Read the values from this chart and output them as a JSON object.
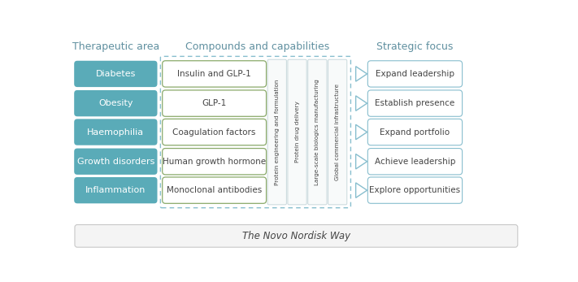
{
  "title_left": "Therapeutic area",
  "title_mid": "Compounds and capabilities",
  "title_right": "Strategic focus",
  "therapeutic_areas": [
    "Diabetes",
    "Obesity",
    "Haemophilia",
    "Growth disorders",
    "Inflammation"
  ],
  "compounds": [
    "Insulin and GLP-1",
    "GLP-1",
    "Coagulation factors",
    "Human growth hormone",
    "Monoclonal antibodies"
  ],
  "capabilities": [
    "Protein engineering and formulation",
    "Protein drug delivery",
    "Large-scale biologics manufacturing",
    "Global commercial infrastructure"
  ],
  "strategic_focus": [
    "Expand leadership",
    "Establish presence",
    "Expand portfolio",
    "Achieve leadership",
    "Explore opportunities"
  ],
  "footer": "The Novo Nordisk Way",
  "teal_color": "#5aabb8",
  "olive_border": "#8aaa6a",
  "light_blue_border": "#88bece",
  "arrow_color": "#88bece",
  "dashed_border": "#88bece",
  "cap_border": "#c8d8dc",
  "cap_fill": "#f8fafa",
  "footer_border": "#c8c8c8",
  "footer_fill": "#f4f4f4",
  "white": "#ffffff",
  "text_dark": "#444444",
  "title_color": "#6090a0"
}
